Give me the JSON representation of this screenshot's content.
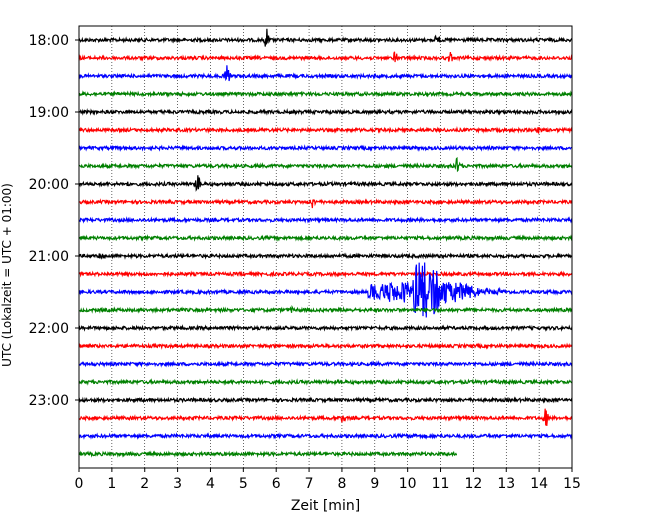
{
  "chart_data": {
    "type": "line",
    "subtype": "helicorder",
    "xlabel": "Zeit  [min]",
    "ylabel": "UTC (Lokalzeit = UTC + 01:00)",
    "xlim": [
      0,
      15
    ],
    "x_ticks": [
      "0",
      "1",
      "2",
      "3",
      "4",
      "5",
      "6",
      "7",
      "8",
      "9",
      "10",
      "11",
      "12",
      "13",
      "14",
      "15"
    ],
    "y_tick_labels": [
      "18:00",
      "19:00",
      "20:00",
      "21:00",
      "22:00",
      "23:00"
    ],
    "row_minutes": 15,
    "grid": "vertical-dotted",
    "colors": [
      "#000000",
      "#ff0000",
      "#0000ff",
      "#008000"
    ],
    "traces": [
      {
        "start": "18:00",
        "end_min": 15,
        "color": "#000000",
        "events": [
          {
            "t": 5.7,
            "amp": 0.6
          },
          {
            "t": 10.9,
            "amp": 0.3
          }
        ]
      },
      {
        "start": "18:15",
        "end_min": 15,
        "color": "#ff0000",
        "events": [
          {
            "t": 9.6,
            "amp": 0.35
          },
          {
            "t": 11.3,
            "amp": 0.3
          }
        ]
      },
      {
        "start": "18:30",
        "end_min": 15,
        "color": "#0000ff",
        "events": [
          {
            "t": 4.5,
            "amp": 0.55
          }
        ]
      },
      {
        "start": "18:45",
        "end_min": 15,
        "color": "#008000",
        "events": []
      },
      {
        "start": "19:00",
        "end_min": 15,
        "color": "#000000",
        "events": []
      },
      {
        "start": "19:15",
        "end_min": 15,
        "color": "#ff0000",
        "events": [
          {
            "t": 14.0,
            "amp": 0.25
          }
        ]
      },
      {
        "start": "19:30",
        "end_min": 15,
        "color": "#0000ff",
        "events": []
      },
      {
        "start": "19:45",
        "end_min": 15,
        "color": "#008000",
        "events": [
          {
            "t": 11.5,
            "amp": 0.45
          }
        ]
      },
      {
        "start": "20:00",
        "end_min": 15,
        "color": "#000000",
        "events": [
          {
            "t": 3.6,
            "amp": 0.6
          },
          {
            "t": 1.5,
            "amp": 0.2
          }
        ]
      },
      {
        "start": "20:15",
        "end_min": 15,
        "color": "#ff0000",
        "events": [
          {
            "t": 7.1,
            "amp": 0.35
          }
        ]
      },
      {
        "start": "20:30",
        "end_min": 15,
        "color": "#0000ff",
        "events": []
      },
      {
        "start": "20:45",
        "end_min": 15,
        "color": "#008000",
        "events": []
      },
      {
        "start": "21:00",
        "end_min": 15,
        "color": "#000000",
        "events": [
          {
            "t": 0.7,
            "amp": 0.2
          }
        ]
      },
      {
        "start": "21:15",
        "end_min": 15,
        "color": "#ff0000",
        "events": []
      },
      {
        "start": "21:30",
        "end_min": 15,
        "color": "#0000ff",
        "events": [
          {
            "t": 8.8,
            "amp": 1.0,
            "type": "quake"
          }
        ]
      },
      {
        "start": "21:45",
        "end_min": 15,
        "color": "#008000",
        "events": [
          {
            "t": 6.5,
            "amp": 0.2
          }
        ]
      },
      {
        "start": "22:00",
        "end_min": 15,
        "color": "#000000",
        "events": []
      },
      {
        "start": "22:15",
        "end_min": 15,
        "color": "#ff0000",
        "events": []
      },
      {
        "start": "22:30",
        "end_min": 15,
        "color": "#0000ff",
        "events": []
      },
      {
        "start": "22:45",
        "end_min": 15,
        "color": "#008000",
        "events": []
      },
      {
        "start": "23:00",
        "end_min": 15,
        "color": "#000000",
        "events": []
      },
      {
        "start": "23:15",
        "end_min": 15,
        "color": "#ff0000",
        "events": [
          {
            "t": 8.0,
            "amp": 0.3
          },
          {
            "t": 14.2,
            "amp": 0.6
          }
        ]
      },
      {
        "start": "23:30",
        "end_min": 15,
        "color": "#0000ff",
        "events": [
          {
            "t": 10.2,
            "amp": 0.2
          }
        ]
      },
      {
        "start": "23:45",
        "end_min": 11.5,
        "color": "#008000",
        "events": []
      }
    ]
  }
}
